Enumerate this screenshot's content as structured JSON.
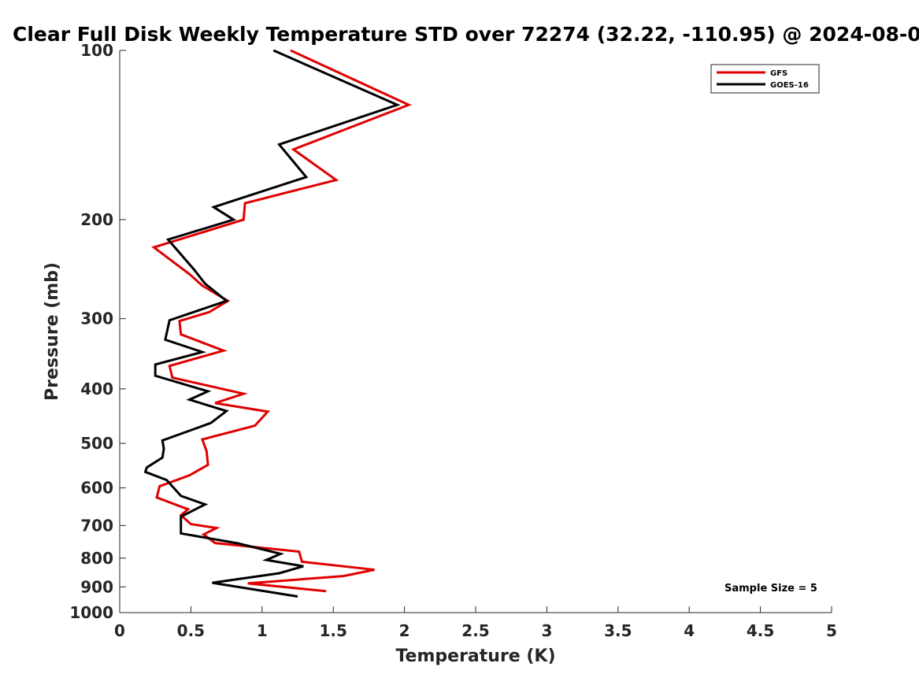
{
  "chart_data": {
    "type": "line",
    "title": "Clear Full Disk Weekly Temperature STD over 72274 (32.22, -110.95) @ 2024-08-0",
    "xlabel": "Temperature (K)",
    "ylabel": "Pressure (mb)",
    "xlim": [
      0,
      5
    ],
    "ylim": [
      1000,
      100
    ],
    "yscale": "log",
    "y_reversed": true,
    "x_ticks": [
      "0",
      "0.5",
      "1",
      "1.5",
      "2",
      "2.5",
      "3",
      "3.5",
      "4",
      "4.5",
      "5"
    ],
    "y_ticks": [
      "100",
      "200",
      "300",
      "400",
      "500",
      "600",
      "700",
      "800",
      "900",
      "1000"
    ],
    "grid": false,
    "legend_position": "top-right",
    "annotation": "Sample Size = 5",
    "series": [
      {
        "name": "GFS",
        "color": "#e00000",
        "points": [
          [
            1.2,
            100
          ],
          [
            2.03,
            125
          ],
          [
            1.22,
            150
          ],
          [
            1.52,
            170
          ],
          [
            0.88,
            187
          ],
          [
            0.87,
            200
          ],
          [
            0.24,
            224
          ],
          [
            0.49,
            250
          ],
          [
            0.58,
            262
          ],
          [
            0.76,
            279
          ],
          [
            0.63,
            292
          ],
          [
            0.42,
            303
          ],
          [
            0.43,
            320
          ],
          [
            0.73,
            342
          ],
          [
            0.35,
            364
          ],
          [
            0.37,
            382
          ],
          [
            0.87,
            408
          ],
          [
            0.67,
            424
          ],
          [
            1.04,
            439
          ],
          [
            0.95,
            465
          ],
          [
            0.58,
            492
          ],
          [
            0.61,
            516
          ],
          [
            0.62,
            546
          ],
          [
            0.49,
            570
          ],
          [
            0.28,
            596
          ],
          [
            0.26,
            624
          ],
          [
            0.48,
            655
          ],
          [
            0.43,
            671
          ],
          [
            0.5,
            696
          ],
          [
            0.68,
            707
          ],
          [
            0.59,
            726
          ],
          [
            0.67,
            752
          ],
          [
            1.26,
            779
          ],
          [
            1.28,
            812
          ],
          [
            1.79,
            839
          ],
          [
            1.57,
            861
          ],
          [
            0.9,
            887
          ],
          [
            1.45,
            916
          ]
        ]
      },
      {
        "name": "GOES-16",
        "color": "#000000",
        "points": [
          [
            1.08,
            100
          ],
          [
            1.95,
            125
          ],
          [
            1.12,
            147
          ],
          [
            1.31,
            168
          ],
          [
            0.66,
            190
          ],
          [
            0.8,
            200
          ],
          [
            0.34,
            217
          ],
          [
            0.52,
            245
          ],
          [
            0.6,
            260
          ],
          [
            0.75,
            279
          ],
          [
            0.35,
            302
          ],
          [
            0.32,
            327
          ],
          [
            0.58,
            344
          ],
          [
            0.25,
            362
          ],
          [
            0.25,
            379
          ],
          [
            0.62,
            404
          ],
          [
            0.49,
            418
          ],
          [
            0.75,
            438
          ],
          [
            0.64,
            460
          ],
          [
            0.3,
            494
          ],
          [
            0.31,
            511
          ],
          [
            0.3,
            530
          ],
          [
            0.19,
            552
          ],
          [
            0.18,
            562
          ],
          [
            0.33,
            581
          ],
          [
            0.43,
            620
          ],
          [
            0.6,
            642
          ],
          [
            0.43,
            675
          ],
          [
            0.43,
            700
          ],
          [
            0.43,
            723
          ],
          [
            0.83,
            753
          ],
          [
            1.13,
            786
          ],
          [
            1.03,
            806
          ],
          [
            1.29,
            827
          ],
          [
            1.12,
            851
          ],
          [
            0.65,
            885
          ],
          [
            1.25,
            936
          ]
        ]
      }
    ]
  }
}
